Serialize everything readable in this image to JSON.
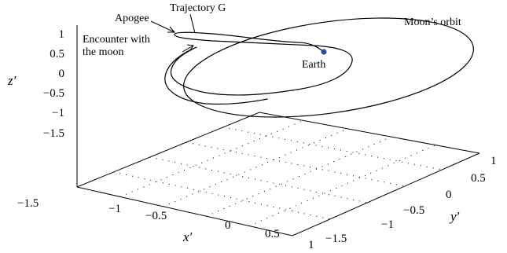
{
  "chart_data": {
    "type": "line",
    "xlabel": "x′",
    "ylabel": "y′",
    "zlabel": "z′",
    "x_ticks": [
      "−1.5",
      "−1",
      "−0.5",
      "0",
      "0.5",
      "1"
    ],
    "y_ticks": [
      "−1.5",
      "−1",
      "−0.5",
      "0",
      "0.5",
      "1"
    ],
    "z_ticks": [
      "1",
      "0.5",
      "0",
      "−0.5",
      "−1",
      "−1.5"
    ],
    "xlim": [
      -1.5,
      1
    ],
    "ylim": [
      -1.5,
      1
    ],
    "zlim": [
      -1.5,
      1
    ],
    "grid": true,
    "series": [
      {
        "name": "Moon’s orbit"
      },
      {
        "name": "Trajectory G"
      }
    ],
    "point_labels": {
      "earth": "Earth"
    },
    "annotations": {
      "apogee": "Apogee",
      "encounter_line1": "Encounter with",
      "encounter_line2": "the moon"
    },
    "colors": {
      "earth": "#2a4f9a",
      "lines": "#000000"
    }
  }
}
